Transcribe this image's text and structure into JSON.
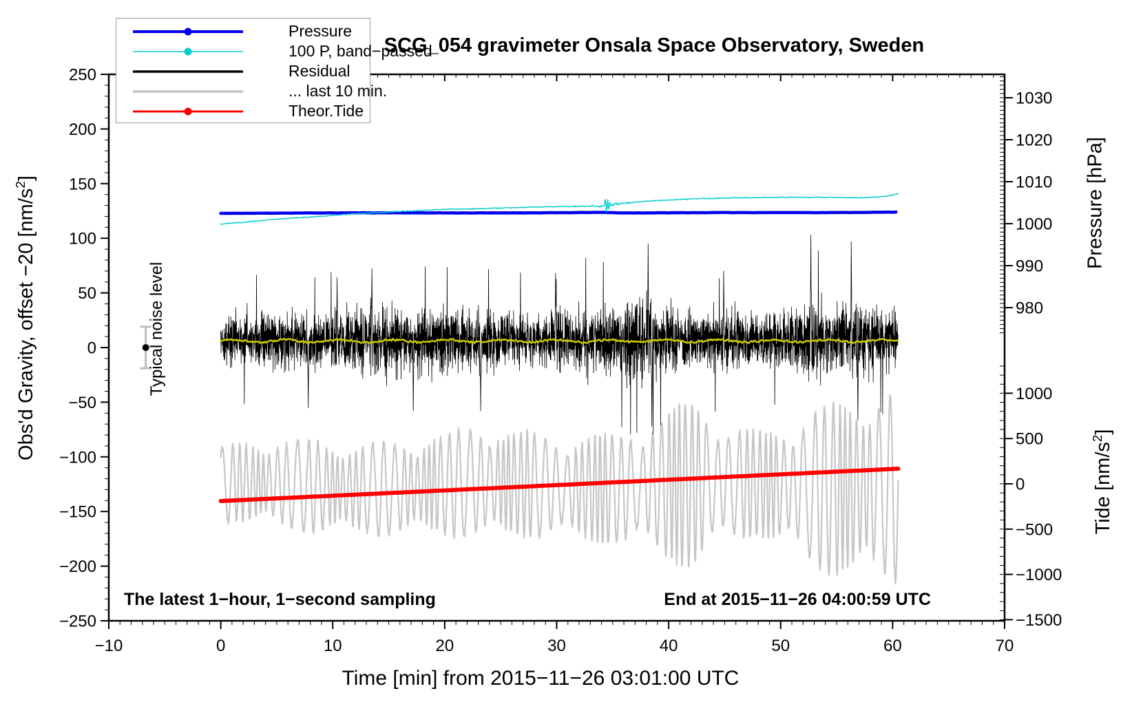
{
  "title": "SCG_054 gravimeter Onsala Space Observatory, Sweden",
  "annotations": {
    "sampling_note": "The latest 1−hour, 1−second sampling",
    "end_note": "End at 2015−11−26 04:00:59 UTC",
    "noise_label": "Typical noise level"
  },
  "chart_data": {
    "type": "line",
    "title": "SCG_054 gravimeter Onsala Space Observatory, Sweden",
    "grid": "off",
    "legend_position": "top-left",
    "axes": {
      "x": {
        "label": "Time [min] from 2015−11−26 03:01:00 UTC",
        "range": [
          -10,
          70
        ],
        "minor_step": 1,
        "major_ticks": [
          {
            "v": -10,
            "label": "−10"
          },
          {
            "v": 0,
            "label": "0"
          },
          {
            "v": 10,
            "label": "10"
          },
          {
            "v": 20,
            "label": "20"
          },
          {
            "v": 30,
            "label": "30"
          },
          {
            "v": 40,
            "label": "40"
          },
          {
            "v": 50,
            "label": "50"
          },
          {
            "v": 60,
            "label": "60"
          },
          {
            "v": 70,
            "label": "70"
          }
        ]
      },
      "gravity": {
        "label_pre": "Obs'd Gravity, offset −20 [nm/s",
        "label_sup": "2",
        "label_post": "]",
        "range": [
          -250,
          250
        ],
        "minor_step": 10,
        "major_ticks": [
          {
            "v": 250,
            "label": "250"
          },
          {
            "v": 200,
            "label": "200"
          },
          {
            "v": 150,
            "label": "150"
          },
          {
            "v": 100,
            "label": "100"
          },
          {
            "v": 50,
            "label": "50"
          },
          {
            "v": 0,
            "label": "0"
          },
          {
            "v": -50,
            "label": "−50"
          },
          {
            "v": -100,
            "label": "−100"
          },
          {
            "v": -150,
            "label": "−150"
          },
          {
            "v": -200,
            "label": "−200"
          },
          {
            "v": -250,
            "label": "−250"
          }
        ]
      },
      "pressure": {
        "label": "Pressure [hPa]",
        "minor_step": 1,
        "major_ticks": [
          {
            "v": 1030,
            "label": "1030"
          },
          {
            "v": 1020,
            "label": "1020"
          },
          {
            "v": 1010,
            "label": "1010"
          },
          {
            "v": 1000,
            "label": "1000"
          },
          {
            "v": 990,
            "label": "990"
          },
          {
            "v": 980,
            "label": "980"
          }
        ]
      },
      "tide": {
        "label_pre": "Tide [nm/s",
        "label_sup": "2",
        "label_post": "]",
        "minor_step": 100,
        "major_ticks": [
          {
            "v": 1000,
            "label": "1000"
          },
          {
            "v": 500,
            "label": "500"
          },
          {
            "v": 0,
            "label": "0"
          },
          {
            "v": -500,
            "label": "−500"
          },
          {
            "v": -1000,
            "label": "−1000"
          },
          {
            "v": -1500,
            "label": "−1500"
          }
        ]
      }
    },
    "legend": {
      "entries": [
        {
          "label": "Pressure",
          "color": "#0000ee",
          "marker": "dot",
          "line_width": 4
        },
        {
          "label": "100 P, band−passed",
          "color": "#00cccc",
          "marker": "dot",
          "line_width": 1.5
        },
        {
          "label": "Residual",
          "color": "#000000",
          "marker": "none",
          "line_width": 3.5
        },
        {
          "label": "... last 10 min.",
          "color": "#c2c2c2",
          "marker": "none",
          "line_width": 3.5
        },
        {
          "label": "Theor.Tide",
          "color": "#ff0000",
          "marker": "dot",
          "line_width": 3
        }
      ]
    },
    "series": [
      {
        "name": "Pressure",
        "axis": "pressure",
        "color": "#0000ee",
        "width": 4.5,
        "x_span": [
          0,
          60.5
        ],
        "keyframes": [
          [
            0,
            1002.45
          ],
          [
            8,
            1002.55
          ],
          [
            15,
            1002.6
          ],
          [
            22,
            1002.55
          ],
          [
            30,
            1002.6
          ],
          [
            34,
            1002.7
          ],
          [
            36,
            1002.55
          ],
          [
            45,
            1002.65
          ],
          [
            55,
            1002.65
          ],
          [
            60.5,
            1002.75
          ]
        ],
        "noise": 0.05
      },
      {
        "name": "100 P, band-passed",
        "axis": "gravity",
        "color": "#00cccc",
        "width": 1.4,
        "x_span": [
          0,
          60.5
        ],
        "keyframes": [
          [
            0,
            113
          ],
          [
            3,
            115.5
          ],
          [
            5,
            117.5
          ],
          [
            8,
            119.5
          ],
          [
            10,
            121
          ],
          [
            13,
            123
          ],
          [
            15,
            124
          ],
          [
            18,
            125.5
          ],
          [
            20,
            126.5
          ],
          [
            23,
            127
          ],
          [
            25,
            127.5
          ],
          [
            28,
            128.5
          ],
          [
            31,
            129
          ],
          [
            33,
            129.5
          ],
          [
            34.2,
            129.5
          ],
          [
            36,
            132
          ],
          [
            38,
            134
          ],
          [
            40,
            135
          ],
          [
            42,
            136
          ],
          [
            44,
            136.5
          ],
          [
            46,
            137
          ],
          [
            50,
            137.5
          ],
          [
            54,
            137.5
          ],
          [
            57,
            137
          ],
          [
            59,
            138
          ],
          [
            60,
            139.5
          ],
          [
            60.5,
            141
          ]
        ],
        "noise": 0.85,
        "burst": {
          "center": 34.3,
          "amplitude": 10,
          "period": 0.2,
          "decay": 0.33
        }
      },
      {
        "name": "Residual",
        "axis": "gravity",
        "color": "#000000",
        "width": 0.8,
        "x_span": [
          0,
          60.5
        ],
        "mean": 7,
        "envelope": [
          [
            0,
            36
          ],
          [
            3,
            40
          ],
          [
            6,
            38
          ],
          [
            9,
            42
          ],
          [
            12,
            50
          ],
          [
            13.5,
            58
          ],
          [
            15,
            48
          ],
          [
            17,
            42
          ],
          [
            19,
            50
          ],
          [
            21,
            46
          ],
          [
            23,
            40
          ],
          [
            25,
            46
          ],
          [
            27,
            38
          ],
          [
            29,
            42
          ],
          [
            31,
            44
          ],
          [
            33,
            46
          ],
          [
            35,
            52
          ],
          [
            37,
            58
          ],
          [
            38,
            66
          ],
          [
            39,
            54
          ],
          [
            41,
            46
          ],
          [
            43,
            40
          ],
          [
            45,
            44
          ],
          [
            47,
            42
          ],
          [
            49,
            40
          ],
          [
            51,
            46
          ],
          [
            52.7,
            58
          ],
          [
            54,
            46
          ],
          [
            56,
            54
          ],
          [
            56.5,
            60
          ],
          [
            58,
            48
          ],
          [
            60.5,
            44
          ]
        ],
        "spikes": [
          [
            7.8,
            -55
          ],
          [
            10.4,
            64
          ],
          [
            13.5,
            72
          ],
          [
            17.2,
            -58
          ],
          [
            23.2,
            -58
          ],
          [
            29.9,
            68
          ],
          [
            38.15,
            95
          ],
          [
            38.5,
            -72
          ],
          [
            44.9,
            70
          ],
          [
            52.7,
            103
          ],
          [
            56.3,
            97
          ],
          [
            56.9,
            -66
          ]
        ]
      },
      {
        "name": "Residual smoothed",
        "axis": "gravity",
        "color": "#cccc00",
        "width": 2.5,
        "x_span": [
          0,
          60.5
        ],
        "mean": 6,
        "wiggle": 2
      },
      {
        "name": "... last 10 min.",
        "axis": "tide",
        "color": "#c6c6c6",
        "width": 2.2,
        "x_span": [
          0,
          60.5
        ],
        "envelope": [
          [
            0,
            420
          ],
          [
            4,
            470
          ],
          [
            8,
            520
          ],
          [
            12,
            500
          ],
          [
            16,
            520
          ],
          [
            20,
            560
          ],
          [
            23,
            640
          ],
          [
            26,
            600
          ],
          [
            30,
            560
          ],
          [
            34,
            600
          ],
          [
            38,
            680
          ],
          [
            40,
            820
          ],
          [
            42,
            950
          ],
          [
            43,
            900
          ],
          [
            45,
            640
          ],
          [
            48,
            580
          ],
          [
            51,
            700
          ],
          [
            53,
            880
          ],
          [
            55,
            950
          ],
          [
            57,
            1000
          ],
          [
            59,
            1060
          ],
          [
            60.5,
            1080
          ]
        ],
        "center": {
          "base": -25,
          "amp": 35
        },
        "base_period_min": 0.75
      },
      {
        "name": "Theor.Tide",
        "axis": "tide",
        "color": "#ff0000",
        "width": 6,
        "x_span": [
          0,
          60.5
        ],
        "keyframes": [
          [
            0,
            -190
          ],
          [
            30,
            -14
          ],
          [
            60.5,
            167
          ]
        ]
      }
    ],
    "noise_marker": {
      "x": -6.7,
      "value": 0,
      "error": 19,
      "bar_color": "#bdbdbd",
      "dot_color": "#000000"
    }
  }
}
